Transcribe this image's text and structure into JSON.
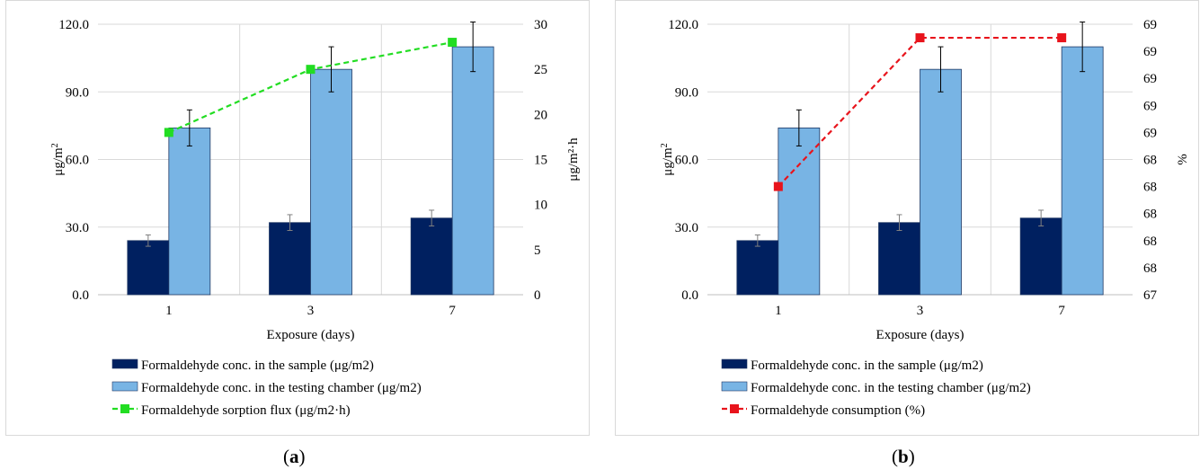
{
  "chart_data": [
    {
      "type": "bar",
      "panel_label": "a",
      "categories": [
        "1",
        "3",
        "7"
      ],
      "xlabel": "Exposure (days)",
      "ylabel": "μg/m",
      "ylabel_sup": "2",
      "y2label": "μg/m²·h",
      "ylim": [
        0,
        120
      ],
      "y_ticks": [
        "0.0",
        "30.0",
        "60.0",
        "90.0",
        "120.0"
      ],
      "y2lim": [
        0,
        30
      ],
      "y2_ticks": [
        "0",
        "5",
        "10",
        "15",
        "20",
        "25",
        "30"
      ],
      "grid": true,
      "legend_position": "bottom",
      "series": [
        {
          "name": "Formaldehyde conc. in the sample (μg/m2)",
          "kind": "bar",
          "axis": "left",
          "color": "#002060",
          "values": [
            24,
            32,
            34
          ],
          "error": [
            2.5,
            3.5,
            3.5
          ]
        },
        {
          "name": "Formaldehyde conc. in the testing chamber (μg/m2)",
          "kind": "bar",
          "axis": "left",
          "color": "#78b4e4",
          "values": [
            74,
            100,
            110
          ],
          "error": [
            8,
            10,
            11
          ]
        },
        {
          "name": "Formaldehyde sorption flux (μg/m2·h)",
          "kind": "line",
          "axis": "right",
          "color": "#22dd22",
          "values": [
            18,
            25,
            28
          ]
        }
      ]
    },
    {
      "type": "bar",
      "panel_label": "b",
      "categories": [
        "1",
        "3",
        "7"
      ],
      "xlabel": "Exposure (days)",
      "ylabel": "μg/m",
      "ylabel_sup": "2",
      "y2label": "%",
      "ylim": [
        0,
        120
      ],
      "y_ticks": [
        "0.0",
        "30.0",
        "60.0",
        "90.0",
        "120.0"
      ],
      "y2lim": [
        67,
        69
      ],
      "y2_ticks": [
        "67",
        "68",
        "68",
        "68",
        "68",
        "68",
        "69",
        "69",
        "69",
        "69",
        "69"
      ],
      "grid": true,
      "legend_position": "bottom",
      "series": [
        {
          "name": "Formaldehyde conc. in the sample (μg/m2)",
          "kind": "bar",
          "axis": "left",
          "color": "#002060",
          "values": [
            24,
            32,
            34
          ],
          "error": [
            2.5,
            3.5,
            3.5
          ]
        },
        {
          "name": "Formaldehyde conc. in the testing chamber (μg/m2)",
          "kind": "bar",
          "axis": "left",
          "color": "#78b4e4",
          "values": [
            74,
            100,
            110
          ],
          "error": [
            8,
            10,
            11
          ]
        },
        {
          "name": "Formaldehyde consumption (%)",
          "kind": "line",
          "axis": "right",
          "color": "#e8141c",
          "values": [
            67.8,
            68.9,
            68.9
          ]
        }
      ]
    }
  ]
}
